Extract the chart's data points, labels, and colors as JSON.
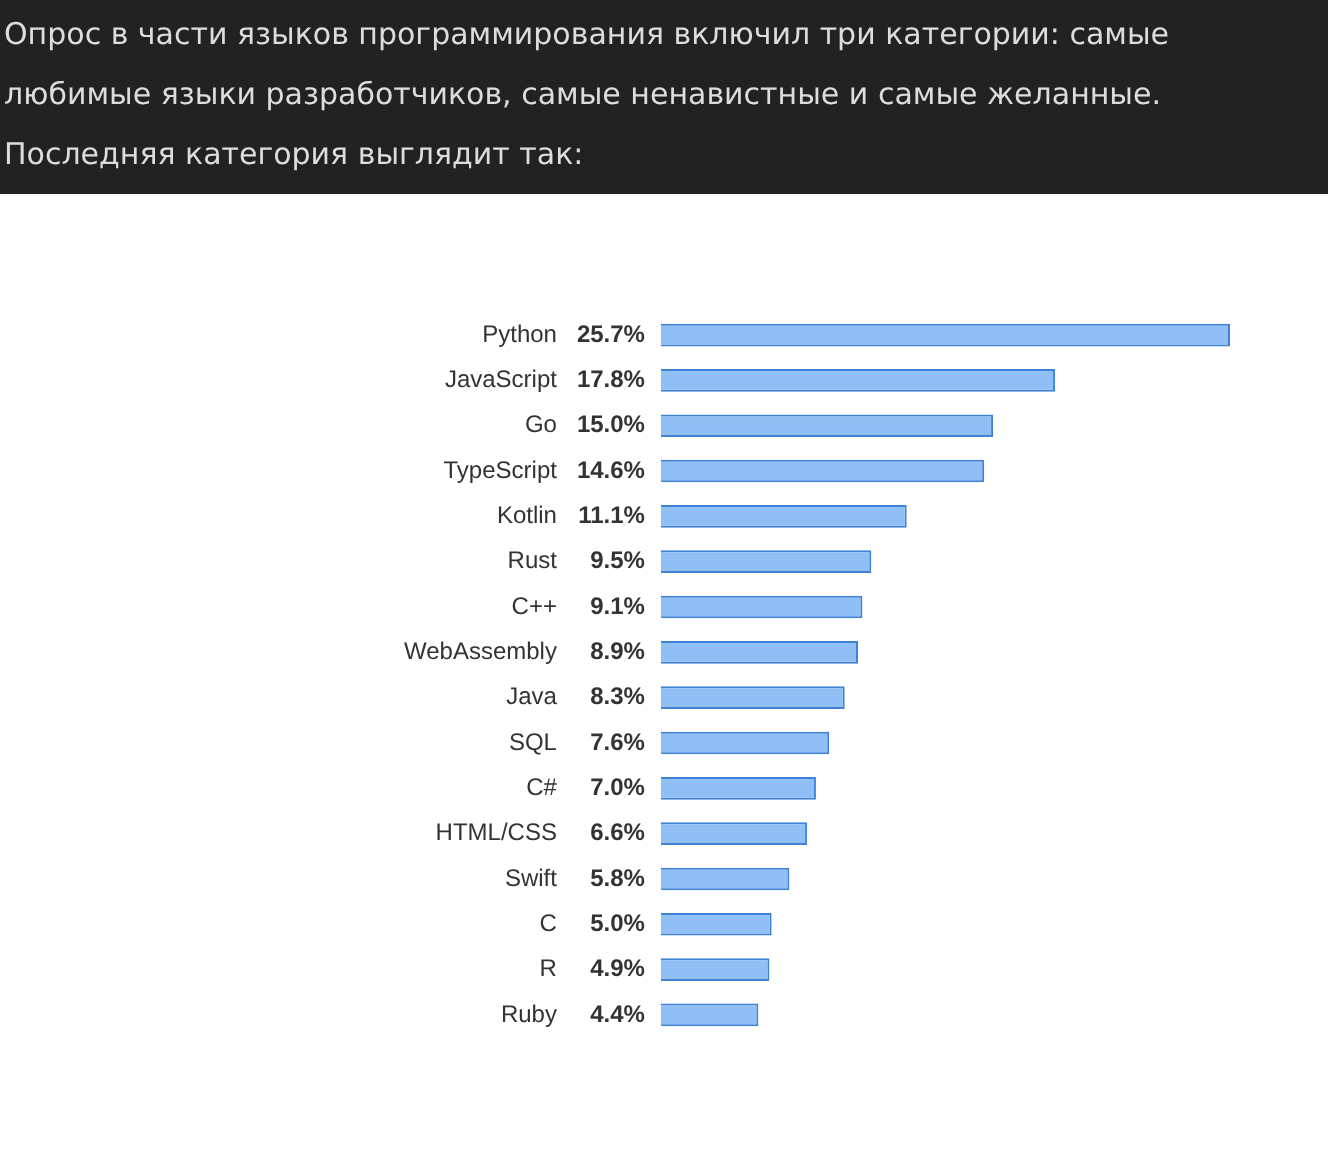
{
  "chart_data": {
    "type": "bar",
    "orientation": "horizontal",
    "title": "Опрос в части языков программирования включил три категории: самые любимые языки разработчиков, самые ненавистные и самые желанные. Последняя категория выглядит так:",
    "categories": [
      "Python",
      "JavaScript",
      "Go",
      "TypeScript",
      "Kotlin",
      "Rust",
      "C++",
      "WebAssembly",
      "Java",
      "SQL",
      "C#",
      "HTML/CSS",
      "Swift",
      "C",
      "R",
      "Ruby"
    ],
    "values": [
      25.7,
      17.8,
      15.0,
      14.6,
      11.1,
      9.5,
      9.1,
      8.9,
      8.3,
      7.6,
      7.0,
      6.6,
      5.8,
      5.0,
      4.9,
      4.4
    ],
    "value_labels": [
      "25.7%",
      "17.8%",
      "15.0%",
      "14.6%",
      "11.1%",
      "9.5%",
      "9.1%",
      "8.9%",
      "8.3%",
      "7.6%",
      "7.0%",
      "6.6%",
      "5.8%",
      "5.0%",
      "4.9%",
      "4.4%"
    ],
    "color": "#8fbff5",
    "grid": false,
    "legend": false
  }
}
